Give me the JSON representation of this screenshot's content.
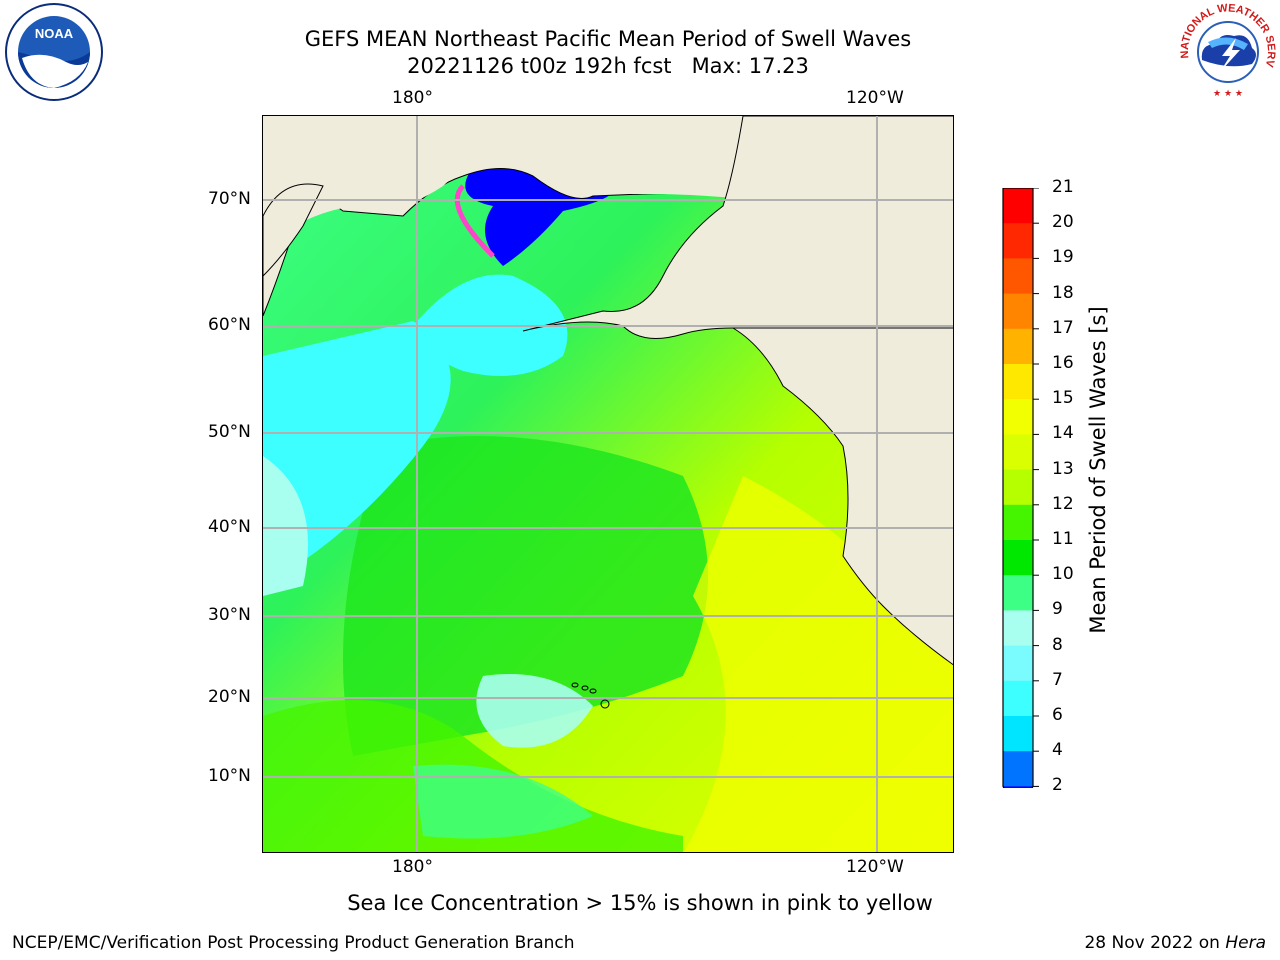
{
  "title_line1": "GEFS MEAN Northeast Pacific Mean Period of Swell Waves",
  "title_line2": "20221126 t00z 192h fcst   Max: 17.23",
  "lon_labels": [
    "180°",
    "120°W"
  ],
  "lat_labels": [
    "70°N",
    "60°N",
    "50°N",
    "40°N",
    "30°N",
    "20°N",
    "10°N"
  ],
  "colorbar": {
    "title": "Mean Period of Swell Waves [s]",
    "ticks": [
      "2",
      "4",
      "6",
      "7",
      "8",
      "9",
      "10",
      "11",
      "12",
      "13",
      "14",
      "15",
      "16",
      "17",
      "18",
      "19",
      "20",
      "21"
    ],
    "colors": [
      "#0000ff",
      "#0073ff",
      "#00e5ff",
      "#3dffff",
      "#7afcff",
      "#a8ffef",
      "#3dff85",
      "#00e800",
      "#45f500",
      "#b5ff00",
      "#d9ff00",
      "#f2ff00",
      "#ffe800",
      "#ffb300",
      "#ff8500",
      "#ff5600",
      "#ff2800",
      "#ff0000"
    ]
  },
  "note": "Sea Ice Concentration > 15% is shown in pink to yellow",
  "credit": "NCEP/EMC/Verification Post Processing Product Generation Branch",
  "date_prefix": "28 Nov 2022 on ",
  "date_host": "Hera",
  "logos": {
    "noaa": "NOAA",
    "nws": "NATIONAL WEATHER SERVICE"
  }
}
